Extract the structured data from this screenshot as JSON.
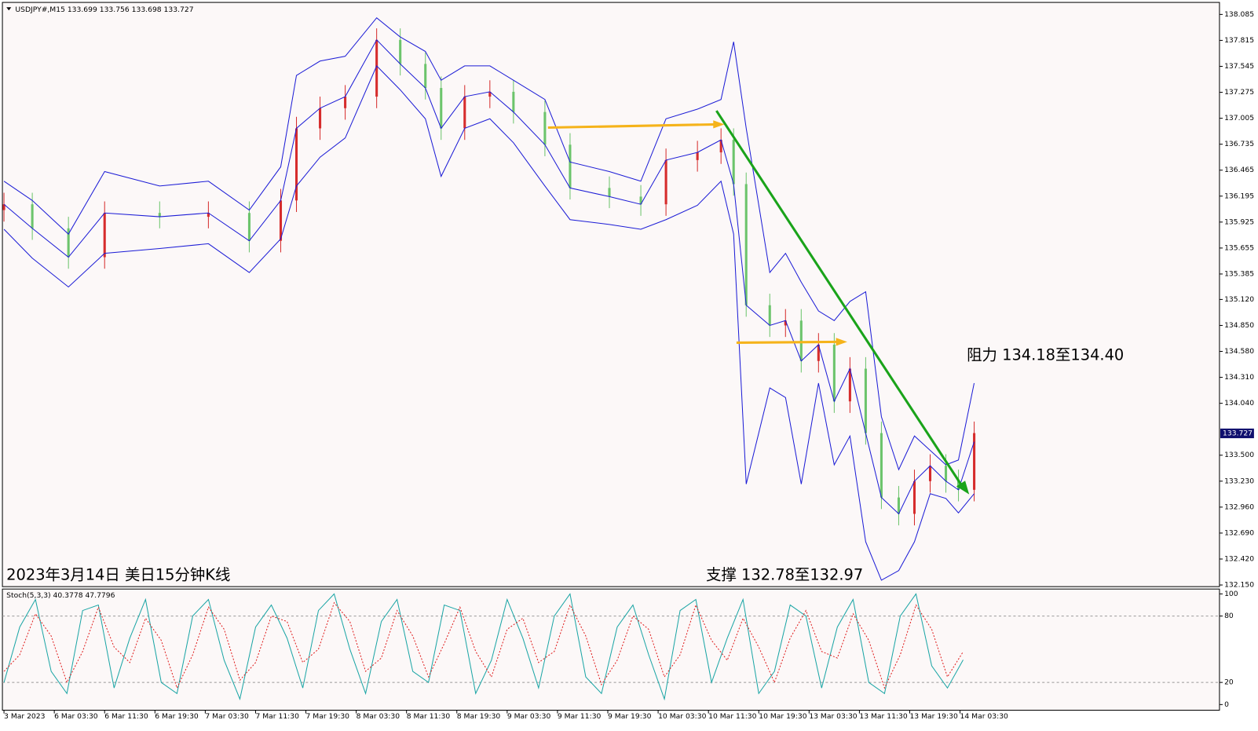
{
  "chart_data": [
    {
      "type": "candlestick",
      "title": "USDJPY#,M15  133.699 133.756 133.698 133.727",
      "annotations": [
        "阻力 134.18至134.40",
        "支撑 132.78至132.97",
        "2023年3月14日 美日15分钟K线"
      ],
      "current_price": {
        "value": 133.727,
        "label": "133.727"
      },
      "up_color": "#d62c2c",
      "down_color": "#6cc46c",
      "x": [
        0,
        18,
        41,
        64,
        99,
        130,
        156,
        176,
        186,
        201,
        217,
        237,
        252,
        268,
        278,
        293,
        309,
        324,
        344,
        360,
        385,
        405,
        421,
        441,
        456,
        464,
        472,
        487,
        497,
        507,
        518,
        528,
        538,
        548,
        558,
        569,
        579,
        589,
        599,
        607,
        617
      ],
      "open": [
        136.05,
        136.11,
        135.86,
        135.56,
        136.02,
        135.98,
        136.02,
        135.73,
        136.15,
        136.9,
        137.11,
        137.23,
        137.82,
        137.57,
        137.32,
        136.9,
        137.23,
        137.28,
        137.07,
        136.73,
        136.28,
        136.19,
        136.11,
        136.57,
        136.65,
        136.78,
        136.32,
        135.06,
        134.85,
        134.9,
        134.48,
        134.65,
        134.06,
        134.4,
        133.73,
        133.06,
        132.89,
        133.23,
        133.39,
        133.23,
        133.14
      ],
      "high": [
        136.23,
        136.23,
        135.98,
        136.14,
        136.14,
        136.14,
        136.14,
        136.27,
        137.02,
        137.23,
        137.35,
        137.94,
        137.94,
        137.69,
        137.44,
        137.35,
        137.4,
        137.4,
        137.19,
        136.85,
        136.4,
        136.31,
        136.69,
        136.77,
        136.9,
        136.9,
        136.44,
        135.18,
        135.02,
        135.02,
        134.77,
        134.77,
        134.52,
        134.52,
        133.85,
        133.18,
        133.35,
        133.51,
        133.51,
        133.35,
        133.85
      ],
      "low": [
        135.93,
        135.74,
        135.44,
        135.44,
        135.86,
        135.86,
        135.61,
        135.61,
        136.03,
        136.78,
        136.99,
        137.11,
        137.45,
        137.2,
        136.78,
        136.78,
        137.11,
        136.95,
        136.61,
        136.16,
        136.07,
        135.99,
        135.99,
        136.45,
        136.53,
        136.2,
        134.94,
        134.73,
        134.73,
        134.36,
        134.36,
        133.94,
        133.94,
        133.61,
        132.94,
        132.77,
        132.77,
        133.11,
        133.11,
        133.02,
        133.02
      ],
      "close": [
        136.11,
        135.86,
        135.56,
        136.02,
        135.98,
        136.02,
        135.73,
        136.15,
        136.9,
        137.11,
        137.23,
        137.82,
        137.57,
        137.32,
        136.9,
        137.23,
        137.28,
        137.07,
        136.73,
        136.28,
        136.19,
        136.11,
        136.57,
        136.65,
        136.78,
        136.32,
        135.06,
        134.85,
        134.9,
        134.48,
        134.65,
        134.06,
        134.4,
        133.73,
        133.06,
        132.89,
        133.23,
        133.39,
        133.23,
        133.14,
        133.73
      ],
      "bands": {
        "color": "#1c1cd6",
        "upper": [
          136.35,
          136.15,
          135.8,
          136.45,
          136.3,
          136.35,
          136.05,
          136.5,
          137.45,
          137.6,
          137.65,
          138.05,
          137.85,
          137.7,
          137.4,
          137.55,
          137.55,
          137.4,
          137.2,
          136.55,
          136.45,
          136.35,
          137.0,
          137.1,
          137.2,
          137.8,
          136.9,
          135.4,
          135.6,
          135.3,
          135.0,
          134.9,
          135.1,
          135.2,
          133.9,
          133.35,
          133.7,
          133.55,
          133.4,
          133.45,
          134.25
        ],
        "middle": [
          136.11,
          135.86,
          135.56,
          136.02,
          135.98,
          136.02,
          135.73,
          136.15,
          136.9,
          137.11,
          137.23,
          137.82,
          137.57,
          137.32,
          136.9,
          137.23,
          137.28,
          137.07,
          136.73,
          136.28,
          136.19,
          136.11,
          136.57,
          136.65,
          136.78,
          136.32,
          135.06,
          134.85,
          134.9,
          134.48,
          134.65,
          134.06,
          134.4,
          133.73,
          133.06,
          132.89,
          133.23,
          133.39,
          133.23,
          133.14,
          133.64
        ],
        "lower": [
          135.85,
          135.55,
          135.25,
          135.6,
          135.65,
          135.7,
          135.4,
          135.75,
          136.3,
          136.6,
          136.8,
          137.55,
          137.3,
          137.0,
          136.4,
          136.9,
          137.0,
          136.75,
          136.3,
          135.95,
          135.9,
          135.85,
          135.95,
          136.1,
          136.35,
          135.8,
          133.2,
          134.2,
          134.1,
          133.2,
          134.25,
          133.4,
          133.7,
          132.6,
          132.2,
          132.3,
          132.6,
          133.1,
          133.05,
          132.9,
          133.1
        ]
      },
      "xlim": [
        -1,
        773
      ],
      "ylim": [
        132.133,
        138.21
      ],
      "yticks": [
        {
          "value": 138.085,
          "label": "138.085"
        },
        {
          "value": 137.815,
          "label": "137.815"
        },
        {
          "value": 137.545,
          "label": "137.545"
        },
        {
          "value": 137.275,
          "label": "137.275"
        },
        {
          "value": 137.005,
          "label": "137.005"
        },
        {
          "value": 136.735,
          "label": "136.735"
        },
        {
          "value": 136.465,
          "label": "136.465"
        },
        {
          "value": 136.195,
          "label": "136.195"
        },
        {
          "value": 135.925,
          "label": "135.925"
        },
        {
          "value": 135.655,
          "label": "135.655"
        },
        {
          "value": 135.385,
          "label": "135.385"
        },
        {
          "value": 135.12,
          "label": "135.120"
        },
        {
          "value": 134.85,
          "label": "134.850"
        },
        {
          "value": 134.58,
          "label": "134.580"
        },
        {
          "value": 134.31,
          "label": "134.310"
        },
        {
          "value": 134.04,
          "label": "134.040"
        },
        {
          "value": 133.5,
          "label": "133.500"
        },
        {
          "value": 133.23,
          "label": "133.230"
        },
        {
          "value": 132.96,
          "label": "132.960"
        },
        {
          "value": 132.69,
          "label": "132.690"
        },
        {
          "value": 132.42,
          "label": "132.420"
        },
        {
          "value": 132.15,
          "label": "132.150"
        }
      ]
    },
    {
      "type": "line",
      "title": "Stoch(5,3,3) 40.3778 47.7796",
      "x": [
        0,
        10,
        20,
        30,
        40,
        50,
        60,
        70,
        80,
        90,
        100,
        110,
        120,
        130,
        140,
        150,
        160,
        170,
        180,
        190,
        200,
        210,
        220,
        230,
        240,
        250,
        260,
        270,
        280,
        290,
        300,
        310,
        320,
        330,
        340,
        350,
        360,
        370,
        380,
        390,
        400,
        410,
        420,
        430,
        440,
        450,
        460,
        470,
        480,
        490,
        500,
        510,
        520,
        530,
        540,
        550,
        560,
        570,
        580,
        590,
        600,
        610
      ],
      "series": [
        {
          "color": "#1aa5a5",
          "values": [
            20,
            70,
            95,
            30,
            10,
            85,
            90,
            15,
            60,
            95,
            20,
            10,
            80,
            95,
            40,
            5,
            70,
            90,
            60,
            15,
            85,
            100,
            50,
            10,
            75,
            95,
            30,
            20,
            90,
            85,
            10,
            40,
            95,
            60,
            15,
            80,
            100,
            25,
            10,
            70,
            90,
            45,
            5,
            85,
            95,
            20,
            60,
            95,
            10,
            30,
            90,
            80,
            15,
            70,
            95,
            20,
            10,
            80,
            100,
            35,
            15,
            40.3778
          ]
        },
        {
          "color": "#e02020",
          "dashed": true,
          "values": [
            30,
            45,
            82,
            62,
            20,
            48,
            88,
            52,
            38,
            78,
            58,
            15,
            45,
            88,
            68,
            22,
            38,
            80,
            75,
            38,
            50,
            92,
            75,
            30,
            42,
            85,
            62,
            25,
            55,
            88,
            48,
            25,
            68,
            78,
            38,
            48,
            90,
            62,
            18,
            40,
            80,
            68,
            25,
            45,
            90,
            58,
            40,
            78,
            52,
            20,
            60,
            85,
            48,
            42,
            82,
            58,
            15,
            45,
            90,
            68,
            25,
            47.7796
          ]
        }
      ],
      "levels": [
        80,
        20
      ],
      "xlim": [
        -1,
        773
      ],
      "ylim": [
        -5.1,
        104.4
      ],
      "yticks": [
        0,
        20,
        80,
        100
      ],
      "xticks": [
        {
          "value": 0,
          "label": "3 Mar 2023"
        },
        {
          "value": 32,
          "label": "6 Mar 03:30"
        },
        {
          "value": 64,
          "label": "6 Mar 11:30"
        },
        {
          "value": 96,
          "label": "6 Mar 19:30"
        },
        {
          "value": 128,
          "label": "7 Mar 03:30"
        },
        {
          "value": 160,
          "label": "7 Mar 11:30"
        },
        {
          "value": 192,
          "label": "7 Mar 19:30"
        },
        {
          "value": 224,
          "label": "8 Mar 03:30"
        },
        {
          "value": 256,
          "label": "8 Mar 11:30"
        },
        {
          "value": 288,
          "label": "8 Mar 19:30"
        },
        {
          "value": 320,
          "label": "9 Mar 03:30"
        },
        {
          "value": 352,
          "label": "9 Mar 11:30"
        },
        {
          "value": 384,
          "label": "9 Mar 19:30"
        },
        {
          "value": 416,
          "label": "10 Mar 03:30"
        },
        {
          "value": 448,
          "label": "10 Mar 11:30"
        },
        {
          "value": 480,
          "label": "10 Mar 19:30"
        },
        {
          "value": 512,
          "label": "13 Mar 03:30"
        },
        {
          "value": 544,
          "label": "13 Mar 11:30"
        },
        {
          "value": 576,
          "label": "13 Mar 19:30"
        },
        {
          "value": 608,
          "label": "14 Mar 03:30"
        }
      ]
    }
  ]
}
